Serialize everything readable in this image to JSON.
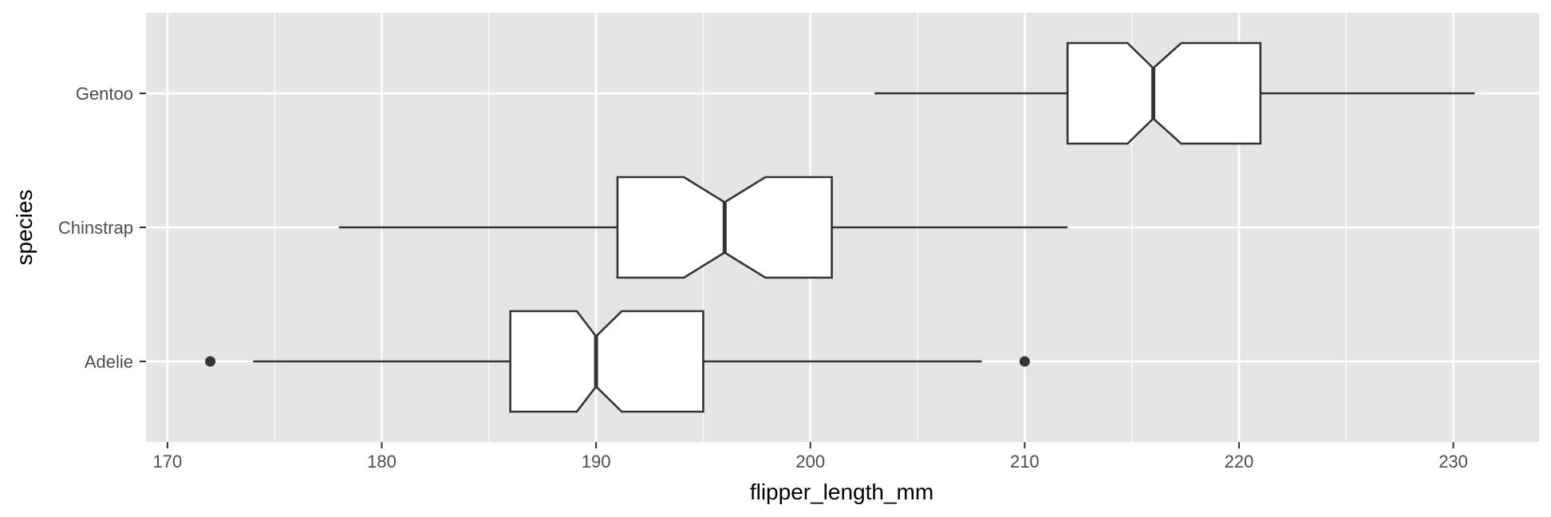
{
  "chart_data": {
    "type": "boxplot",
    "orientation": "horizontal",
    "notched": true,
    "xlabel": "flipper_length_mm",
    "ylabel": "species",
    "xlim": [
      169,
      234
    ],
    "x_ticks": [
      170,
      180,
      190,
      200,
      210,
      220,
      230
    ],
    "x_minor_ticks": [
      175,
      185,
      195,
      205,
      215,
      225
    ],
    "grid": true,
    "panel_background": "#e5e5e5",
    "box_fill": "#ffffff",
    "line_color": "#333333",
    "categories": [
      "Adelie",
      "Chinstrap",
      "Gentoo"
    ],
    "boxes": [
      {
        "species": "Adelie",
        "whisker_low": 174,
        "q1": 186,
        "median": 190,
        "q3": 195,
        "whisker_high": 208,
        "notch_low": 189.1,
        "notch_high": 191.2,
        "outliers": [
          172,
          210
        ]
      },
      {
        "species": "Chinstrap",
        "whisker_low": 178,
        "q1": 191,
        "median": 196,
        "q3": 201,
        "whisker_high": 212,
        "notch_low": 194.1,
        "notch_high": 197.9,
        "outliers": []
      },
      {
        "species": "Gentoo",
        "whisker_low": 203,
        "q1": 212,
        "median": 216,
        "q3": 221,
        "whisker_high": 231,
        "notch_low": 214.8,
        "notch_high": 217.3,
        "outliers": []
      }
    ]
  }
}
